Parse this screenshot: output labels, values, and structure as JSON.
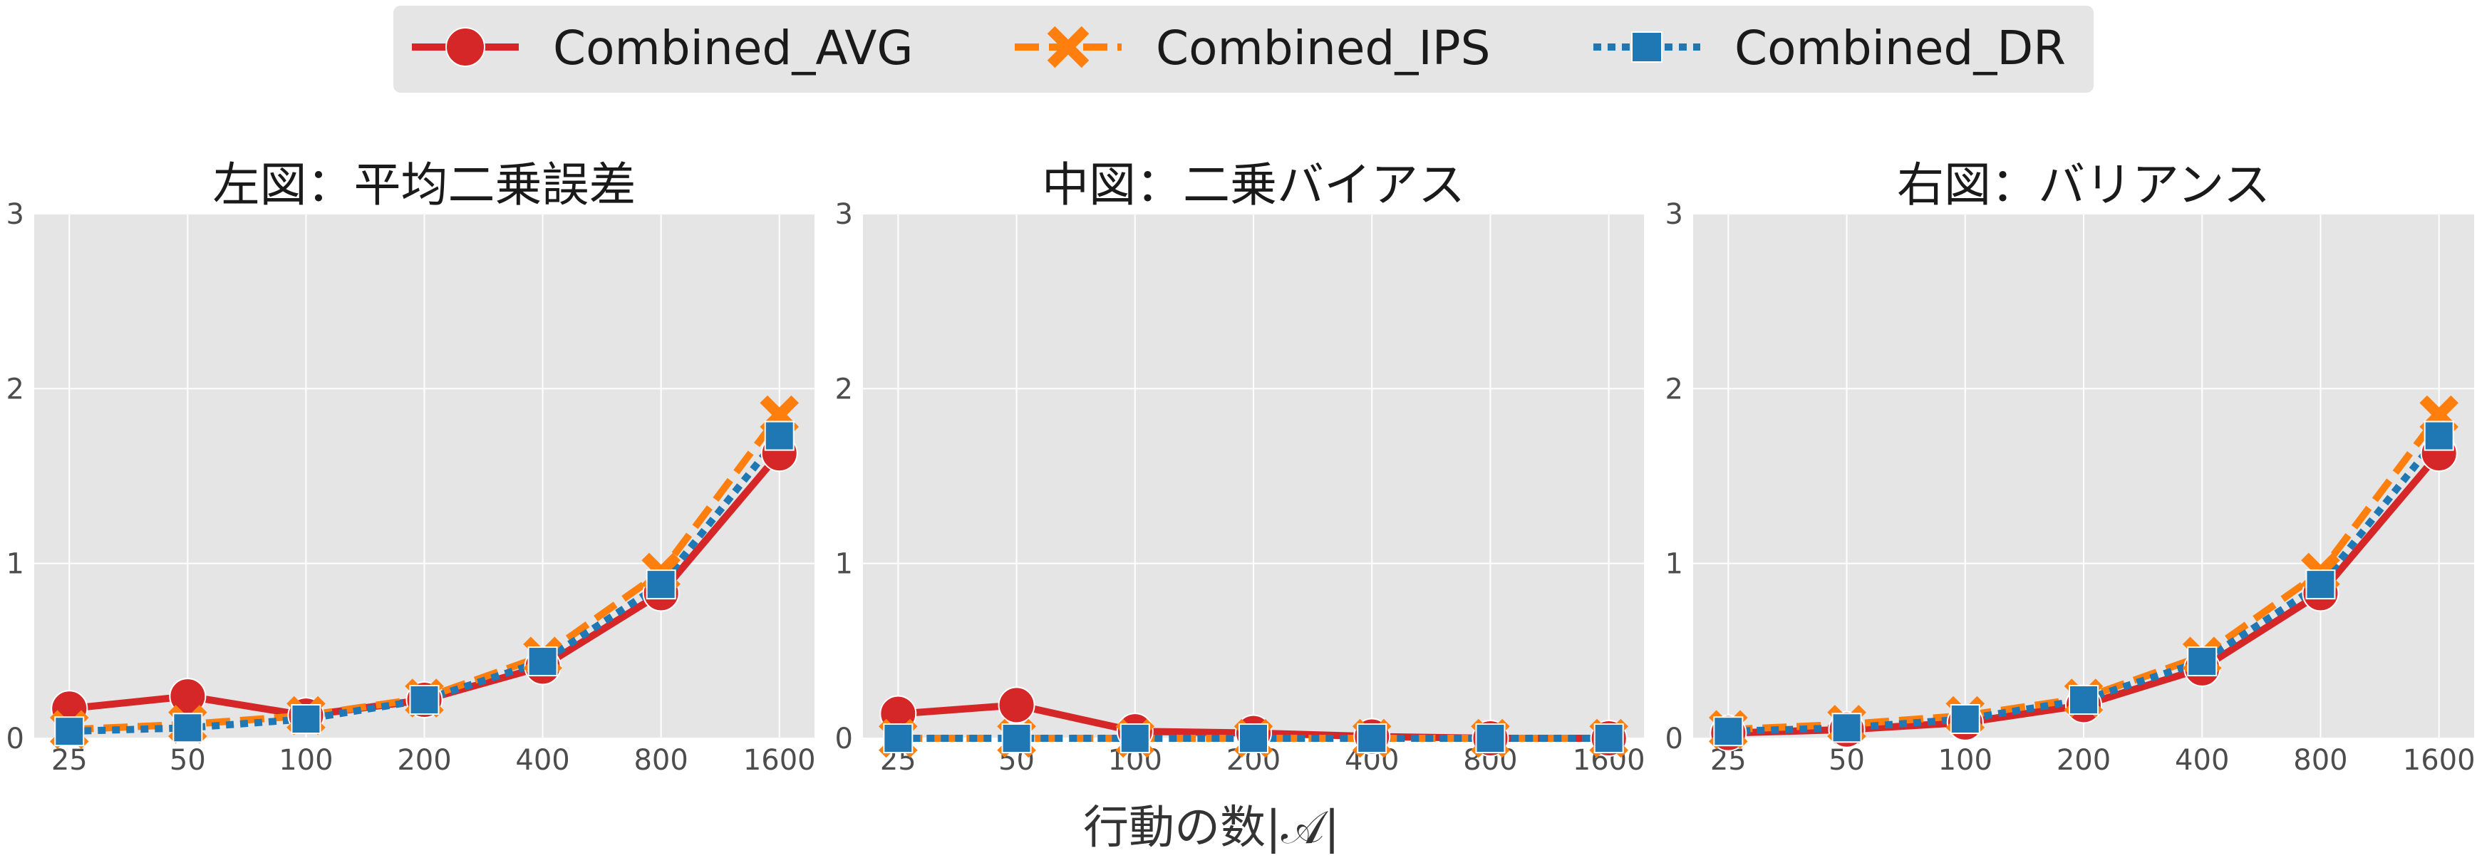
{
  "legend": {
    "placement": "top-center",
    "entries": [
      {
        "name": "Combined_AVG",
        "color": "#d62728",
        "linestyle": "solid",
        "marker": "circle"
      },
      {
        "name": "Combined_IPS",
        "color": "#ff7f0e",
        "linestyle": "dashed",
        "marker": "x"
      },
      {
        "name": "Combined_DR",
        "color": "#1f77b4",
        "linestyle": "dotted",
        "marker": "square"
      }
    ]
  },
  "xlabel": "行動の数|𝒜|",
  "chart_data": [
    {
      "type": "line",
      "title": "左図：平均二乗誤差",
      "categories": [
        "25",
        "50",
        "100",
        "200",
        "400",
        "800",
        "1600"
      ],
      "ylim": [
        0,
        3
      ],
      "yticks": [
        0,
        1,
        2,
        3
      ],
      "grid": true,
      "series": [
        {
          "name": "Combined_AVG",
          "values": [
            0.17,
            0.24,
            0.13,
            0.22,
            0.41,
            0.83,
            1.63
          ]
        },
        {
          "name": "Combined_IPS",
          "values": [
            0.05,
            0.08,
            0.13,
            0.23,
            0.47,
            0.95,
            1.85
          ]
        },
        {
          "name": "Combined_DR",
          "values": [
            0.04,
            0.06,
            0.11,
            0.22,
            0.44,
            0.88,
            1.73
          ]
        }
      ]
    },
    {
      "type": "line",
      "title": "中図：二乗バイアス",
      "categories": [
        "25",
        "50",
        "100",
        "200",
        "400",
        "800",
        "1600"
      ],
      "ylim": [
        0,
        3
      ],
      "yticks": [
        0,
        1,
        2,
        3
      ],
      "grid": true,
      "series": [
        {
          "name": "Combined_AVG",
          "values": [
            0.14,
            0.19,
            0.04,
            0.03,
            0.01,
            0.0,
            0.0
          ]
        },
        {
          "name": "Combined_IPS",
          "values": [
            0.0,
            0.0,
            0.0,
            0.0,
            0.0,
            0.0,
            0.0
          ]
        },
        {
          "name": "Combined_DR",
          "values": [
            0.0,
            0.0,
            0.0,
            0.0,
            0.0,
            0.0,
            0.0
          ]
        }
      ]
    },
    {
      "type": "line",
      "title": "右図：バリアンス",
      "categories": [
        "25",
        "50",
        "100",
        "200",
        "400",
        "800",
        "1600"
      ],
      "ylim": [
        0,
        3
      ],
      "yticks": [
        0,
        1,
        2,
        3
      ],
      "grid": true,
      "series": [
        {
          "name": "Combined_AVG",
          "values": [
            0.03,
            0.05,
            0.09,
            0.19,
            0.4,
            0.83,
            1.63
          ]
        },
        {
          "name": "Combined_IPS",
          "values": [
            0.05,
            0.08,
            0.13,
            0.23,
            0.47,
            0.95,
            1.85
          ]
        },
        {
          "name": "Combined_DR",
          "values": [
            0.04,
            0.06,
            0.11,
            0.22,
            0.44,
            0.88,
            1.73
          ]
        }
      ]
    }
  ]
}
